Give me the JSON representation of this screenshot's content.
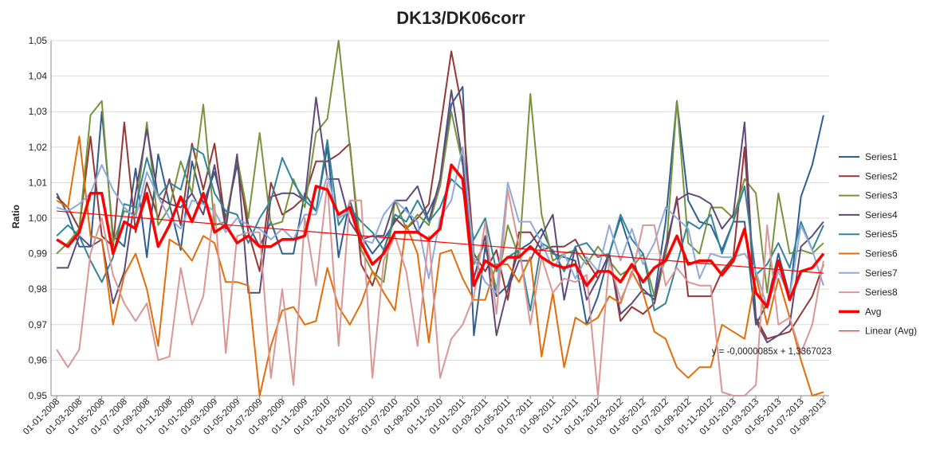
{
  "chart_data": {
    "type": "line",
    "title": "DK13/DK06corr",
    "xlabel": "",
    "ylabel": "Ratio",
    "ylim": [
      0.95,
      1.05
    ],
    "yticks": [
      "0,95",
      "0,96",
      "0,97",
      "0,98",
      "0,99",
      "1,00",
      "1,01",
      "1,02",
      "1,03",
      "1,04",
      "1,05"
    ],
    "ytick_values": [
      0.95,
      0.96,
      0.97,
      0.98,
      0.99,
      1.0,
      1.01,
      1.02,
      1.03,
      1.04,
      1.05
    ],
    "grid": "horizontal",
    "legend": "right",
    "x": [
      "01-01-2008",
      "01-02-2008",
      "01-03-2008",
      "01-04-2008",
      "01-05-2008",
      "01-06-2008",
      "01-07-2008",
      "01-08-2008",
      "01-09-2008",
      "01-10-2008",
      "01-11-2008",
      "01-12-2008",
      "01-01-2009",
      "01-02-2009",
      "01-03-2009",
      "01-04-2009",
      "01-05-2009",
      "01-06-2009",
      "01-07-2009",
      "01-08-2009",
      "01-09-2009",
      "01-10-2009",
      "01-11-2009",
      "01-12-2009",
      "01-01-2010",
      "01-02-2010",
      "01-03-2010",
      "01-04-2010",
      "01-05-2010",
      "01-06-2010",
      "01-07-2010",
      "01-08-2010",
      "01-09-2010",
      "01-10-2010",
      "01-11-2010",
      "01-12-2010",
      "01-01-2011",
      "01-02-2011",
      "01-03-2011",
      "01-04-2011",
      "01-05-2011",
      "01-06-2011",
      "01-07-2011",
      "01-08-2011",
      "01-09-2011",
      "01-10-2011",
      "01-11-2011",
      "01-12-2011",
      "01-01-2012",
      "01-02-2012",
      "01-03-2012",
      "01-04-2012",
      "01-05-2012",
      "01-06-2012",
      "01-07-2012",
      "01-08-2012",
      "01-09-2012",
      "01-10-2012",
      "01-11-2012",
      "01-12-2012",
      "01-01-2013",
      "01-02-2013",
      "01-03-2013",
      "01-04-2013",
      "01-05-2013",
      "01-06-2013",
      "01-07-2013",
      "01-08-2013",
      "01-09-2013"
    ],
    "xtick_labels": [
      "01-01-2008",
      "01-03-2008",
      "01-05-2008",
      "01-07-2008",
      "01-09-2008",
      "01-11-2008",
      "01-01-2009",
      "01-03-2009",
      "01-05-2009",
      "01-07-2009",
      "01-09-2009",
      "01-11-2009",
      "01-01-2010",
      "01-03-2010",
      "01-05-2010",
      "01-07-2010",
      "01-09-2010",
      "01-11-2010",
      "01-01-2011",
      "01-03-2011",
      "01-05-2011",
      "01-07-2011",
      "01-09-2011",
      "01-11-2011",
      "01-01-2012",
      "01-03-2012",
      "01-05-2012",
      "01-07-2012",
      "01-09-2012",
      "01-11-2012",
      "01-01-2013",
      "01-03-2013",
      "01-05-2013",
      "01-07-2013",
      "01-09-2013"
    ],
    "series": [
      {
        "name": "Series1",
        "color": "#2E5E91",
        "width": 2,
        "values": [
          1.007,
          1.001,
          0.992,
          0.992,
          1.03,
          0.995,
          0.992,
          1.014,
          0.989,
          1.018,
          1.004,
          0.991,
          1.016,
          1.004,
          1.013,
          1.0,
          1.015,
          0.998,
          0.992,
          0.999,
          0.99,
          0.99,
          1.007,
          1.002,
          1.02,
          0.989,
          1.005,
          0.995,
          0.99,
          0.994,
          0.999,
          1.003,
          0.996,
          1.002,
          1.009,
          1.032,
          1.037,
          0.967,
          0.992,
          0.978,
          0.981,
          0.991,
          0.993,
          0.997,
          0.99,
          0.989,
          0.988,
          0.97,
          0.978,
          0.99,
          1.0,
          0.99,
          0.979,
          0.978,
          0.999,
          1.033,
          1.005,
          0.999,
          0.998,
          0.991,
          0.999,
          0.999,
          0.97,
          0.976,
          0.99,
          0.978,
          1.006,
          1.015,
          1.029
        ]
      },
      {
        "name": "Series2",
        "color": "#953735",
        "width": 2,
        "values": [
          1.006,
          1.003,
          0.997,
          1.023,
          0.995,
          0.992,
          1.027,
          0.996,
          1.01,
          1.0,
          1.011,
          0.998,
          1.021,
          1.008,
          1.021,
          0.998,
          1.017,
          0.996,
          0.985,
          1.01,
          1.001,
          1.003,
          1.006,
          1.016,
          1.016,
          1.018,
          1.021,
          0.987,
          0.981,
          0.991,
          1.0,
          0.997,
          1.0,
          1.004,
          1.025,
          1.047,
          1.03,
          0.99,
          0.985,
          0.991,
          0.977,
          0.996,
          0.996,
          0.991,
          0.992,
          0.992,
          0.994,
          0.988,
          0.983,
          0.99,
          0.971,
          0.975,
          0.973,
          0.976,
          0.99,
          1.006,
          0.978,
          0.978,
          0.978,
          0.985,
          0.989,
          1.02,
          0.972,
          0.966,
          0.967,
          0.968,
          0.973,
          0.978,
          0.987
        ]
      },
      {
        "name": "Series3",
        "color": "#77933C",
        "width": 2,
        "values": [
          0.99,
          0.993,
          0.997,
          1.029,
          1.033,
          0.993,
          1.002,
          1.001,
          1.027,
          0.998,
          1.003,
          1.016,
          1.007,
          1.032,
          0.998,
          0.999,
          1.017,
          1.0,
          1.024,
          0.998,
          0.999,
          1.011,
          1.003,
          1.024,
          1.028,
          1.05,
          1.02,
          0.991,
          0.985,
          0.982,
          1.005,
          0.997,
          1.001,
          0.998,
          1.009,
          1.03,
          1.015,
          0.987,
          0.993,
          0.98,
          0.998,
          0.989,
          1.035,
          1.001,
          0.988,
          0.99,
          0.991,
          0.987,
          0.992,
          0.988,
          0.984,
          0.986,
          0.99,
          0.978,
          0.989,
          1.033,
          0.993,
          0.99,
          1.003,
          1.003,
          1.0,
          1.011,
          1.007,
          0.979,
          1.007,
          0.99,
          0.991,
          0.99,
          0.993
        ]
      },
      {
        "name": "Series4",
        "color": "#5F497A",
        "width": 2,
        "values": [
          0.986,
          0.986,
          0.995,
          0.992,
          0.994,
          0.976,
          0.985,
          1.007,
          1.025,
          1.006,
          1.004,
          1.003,
          1.007,
          1.001,
          1.015,
          0.997,
          1.018,
          0.979,
          0.979,
          1.006,
          1.007,
          1.007,
          1.005,
          1.034,
          1.011,
          1.011,
          0.999,
          0.994,
          0.995,
          0.995,
          1.005,
          1.005,
          1.009,
          0.999,
          1.011,
          1.036,
          1.016,
          0.983,
          0.995,
          0.967,
          0.98,
          0.988,
          0.988,
          0.995,
          1.001,
          0.977,
          0.992,
          0.977,
          0.983,
          0.99,
          0.973,
          0.976,
          0.98,
          0.977,
          0.992,
          1.005,
          1.007,
          1.006,
          1.004,
          0.997,
          1.001,
          1.027,
          0.971,
          0.965,
          0.967,
          0.97,
          0.992,
          0.995,
          0.999
        ]
      },
      {
        "name": "Series5",
        "color": "#31849B",
        "width": 2,
        "values": [
          0.995,
          0.998,
          0.995,
          0.988,
          0.982,
          0.989,
          1.004,
          1.003,
          1.017,
          1.006,
          1.01,
          1.008,
          1.02,
          1.018,
          1.007,
          1.002,
          1.001,
          0.993,
          1.0,
          1.005,
          1.017,
          1.01,
          1.005,
          1.002,
          1.022,
          0.998,
          1.003,
          0.999,
          0.996,
          0.991,
          1.001,
          0.999,
          1.005,
          0.999,
          1.003,
          1.011,
          1.008,
          0.994,
          1.0,
          0.985,
          0.989,
          0.991,
          0.974,
          0.993,
          0.991,
          0.985,
          0.992,
          0.993,
          0.989,
          0.99,
          1.001,
          0.994,
          0.99,
          0.974,
          0.976,
          0.987,
          0.999,
          0.997,
          1.001,
          0.99,
          0.999,
          1.009,
          0.984,
          0.987,
          0.993,
          0.986,
          0.999,
          0.991,
          0.998
        ]
      },
      {
        "name": "Series6",
        "color": "#E46C0A",
        "width": 2,
        "values": [
          1.005,
          1.003,
          1.023,
          0.995,
          0.994,
          0.97,
          0.984,
          0.99,
          0.98,
          0.964,
          0.994,
          0.992,
          0.988,
          0.995,
          0.993,
          0.982,
          0.982,
          0.981,
          0.95,
          0.964,
          0.974,
          0.975,
          0.97,
          0.971,
          0.986,
          0.975,
          0.97,
          0.976,
          0.985,
          0.979,
          0.974,
          0.998,
          0.99,
          0.965,
          0.99,
          0.991,
          0.983,
          0.977,
          0.977,
          0.987,
          0.987,
          0.982,
          0.989,
          0.961,
          0.979,
          0.958,
          0.972,
          0.97,
          0.972,
          0.978,
          0.976,
          0.985,
          0.979,
          0.968,
          0.966,
          0.958,
          0.955,
          0.958,
          0.958,
          0.97,
          0.968,
          0.966,
          0.984,
          0.97,
          0.983,
          0.972,
          0.96,
          0.95,
          0.951
        ]
      },
      {
        "name": "Series7",
        "color": "#8EA9DB",
        "width": 2,
        "values": [
          1.003,
          1.002,
          1.004,
          1.007,
          1.015,
          1.008,
          1.003,
          1.0,
          1.013,
          1.006,
          1.0,
          0.997,
          1.005,
          1.004,
          1.002,
          0.996,
          1.0,
          0.998,
          0.997,
          0.994,
          0.997,
          0.994,
          1.001,
          1.001,
          1.012,
          1.0,
          1.002,
          0.994,
          0.993,
          1.001,
          1.005,
          1.002,
          0.999,
          0.983,
          1.0,
          1.005,
          1.02,
          0.989,
          0.982,
          0.979,
          1.01,
          0.999,
          0.999,
          0.993,
          0.986,
          0.99,
          0.983,
          0.989,
          0.985,
          0.998,
          0.988,
          0.997,
          0.987,
          0.993,
          1.003,
          1.0,
          0.997,
          0.983,
          0.99,
          0.989,
          0.989,
          0.99,
          0.985,
          0.975,
          0.985,
          0.978,
          0.998,
          0.991,
          0.981
        ]
      },
      {
        "name": "Series8",
        "color": "#D99694",
        "width": 2,
        "values": [
          0.963,
          0.958,
          0.963,
          0.99,
          1.0,
          0.984,
          0.976,
          0.971,
          0.976,
          0.96,
          0.961,
          0.986,
          0.97,
          0.978,
          1.004,
          0.962,
          0.995,
          0.996,
          0.996,
          0.955,
          0.98,
          0.953,
          1.0,
          0.981,
          1.01,
          0.964,
          1.005,
          1.005,
          0.955,
          0.988,
          0.995,
          0.985,
          0.964,
          0.995,
          0.955,
          0.966,
          0.97,
          0.978,
          0.999,
          0.973,
          1.008,
          0.992,
          0.97,
          0.989,
          0.979,
          0.983,
          0.982,
          0.984,
          0.95,
          0.988,
          0.977,
          0.984,
          0.998,
          0.998,
          0.981,
          0.986,
          0.982,
          0.981,
          0.981,
          0.951,
          0.95,
          0.95,
          0.953,
          0.998,
          0.97,
          0.972,
          0.962,
          0.97,
          0.988
        ]
      },
      {
        "name": "Avg",
        "color": "#FF0000",
        "width": 3.5,
        "values": [
          0.994,
          0.992,
          0.996,
          1.007,
          1.007,
          0.99,
          0.999,
          0.997,
          1.007,
          0.992,
          0.998,
          1.006,
          0.999,
          1.007,
          0.996,
          0.998,
          0.993,
          0.995,
          0.992,
          0.992,
          0.994,
          0.994,
          0.995,
          1.009,
          1.008,
          1.001,
          1.003,
          0.993,
          0.987,
          0.99,
          0.996,
          0.996,
          0.996,
          0.994,
          0.997,
          1.015,
          1.011,
          0.981,
          0.988,
          0.986,
          0.989,
          0.989,
          0.992,
          0.989,
          0.987,
          0.986,
          0.987,
          0.981,
          0.985,
          0.985,
          0.982,
          0.987,
          0.982,
          0.986,
          0.988,
          0.995,
          0.987,
          0.988,
          0.988,
          0.984,
          0.988,
          0.997,
          0.979,
          0.975,
          0.988,
          0.977,
          0.985,
          0.986,
          0.99
        ]
      }
    ],
    "trendline": {
      "name": "Linear (Avg)",
      "color": "#FF0000",
      "start": 1.002,
      "end": 0.9845,
      "equation": "y = -0,0000085x + 1,3367023"
    }
  }
}
